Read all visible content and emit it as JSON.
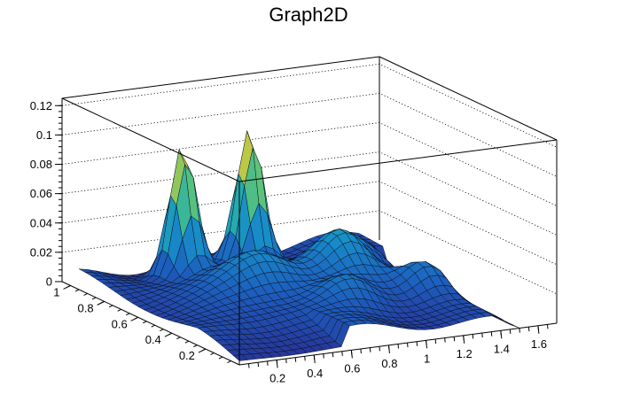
{
  "chart_data": {
    "type": "surface3d",
    "title": "Graph2D",
    "xlabel": "",
    "ylabel": "",
    "zlabel": "",
    "xlim": [
      0.0,
      1.7
    ],
    "ylim": [
      0.0,
      1.05
    ],
    "zlim": [
      0.0,
      0.125
    ],
    "x_ticks": [
      "0.2",
      "0.4",
      "0.6",
      "0.8",
      "1",
      "1.2",
      "1.4",
      "1.6"
    ],
    "y_ticks": [
      "0.2",
      "0.4",
      "0.6",
      "0.8",
      "1"
    ],
    "z_ticks": [
      "0",
      "0.02",
      "0.04",
      "0.06",
      "0.08",
      "0.1",
      "0.12"
    ],
    "grid": true,
    "colormap": "viridis",
    "nx": 34,
    "ny": 28,
    "data_x_max": 1.5,
    "data_y_max": 0.95,
    "base_level": 0.014,
    "peaks": [
      {
        "x": 0.42,
        "y": 0.8,
        "z": 0.09,
        "sx": 0.06,
        "sy": 0.05
      },
      {
        "x": 0.78,
        "y": 0.8,
        "z": 0.094,
        "sx": 0.06,
        "sy": 0.05
      },
      {
        "x": 0.6,
        "y": 0.55,
        "z": 0.03,
        "sx": 0.16,
        "sy": 0.1
      },
      {
        "x": 1.05,
        "y": 0.55,
        "z": 0.03,
        "sx": 0.12,
        "sy": 0.1
      },
      {
        "x": 1.3,
        "y": 0.35,
        "z": 0.022,
        "sx": 0.1,
        "sy": 0.08
      },
      {
        "x": 0.85,
        "y": 0.3,
        "z": 0.018,
        "sx": 0.12,
        "sy": 0.07
      },
      {
        "x": 1.25,
        "y": 0.7,
        "z": 0.018,
        "sx": 0.1,
        "sy": 0.08
      }
    ]
  }
}
